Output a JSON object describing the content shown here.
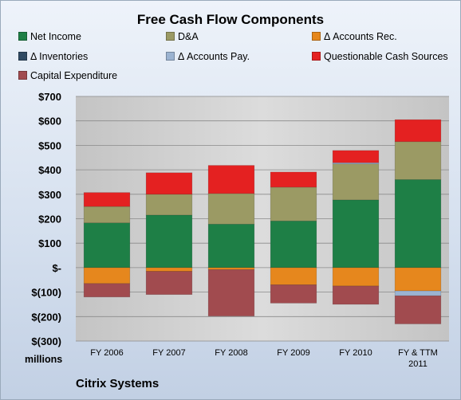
{
  "chart_data": {
    "type": "bar",
    "stacked": true,
    "title": "Free Cash Flow Components",
    "ylabel": "millions",
    "ylim": [
      -300,
      700
    ],
    "yticks": [
      -300,
      -200,
      -100,
      0,
      100,
      200,
      300,
      400,
      500,
      600,
      700
    ],
    "ytick_labels": [
      "$(300)",
      "$(200)",
      "$(100)",
      "$-",
      "$100",
      "$200",
      "$300",
      "$400",
      "$500",
      "$600",
      "$700"
    ],
    "categories": [
      "FY 2006",
      "FY 2007",
      "FY 2008",
      "FY 2009",
      "FY 2010",
      [
        "FY & TTM",
        "2011"
      ]
    ],
    "legend_position": "top",
    "grid": true,
    "series": [
      {
        "name": "Net Income",
        "color": "#1e7f46",
        "values": [
          183,
          215,
          178,
          191,
          277,
          360
        ]
      },
      {
        "name": "D&A",
        "color": "#9b9a64",
        "values": [
          67,
          85,
          125,
          138,
          147,
          155
        ]
      },
      {
        "name": "Δ Accounts Rec.",
        "color": "#e6871d",
        "values": [
          -65,
          -15,
          -8,
          -70,
          -75,
          -95
        ]
      },
      {
        "name": "Δ Inventories",
        "color": "#2f4a63",
        "values": [
          0,
          0,
          0,
          0,
          0,
          0
        ]
      },
      {
        "name": "Δ Accounts Pay.",
        "color": "#9bb3d1",
        "values": [
          0,
          0,
          0,
          0,
          5,
          -20
        ]
      },
      {
        "name": "Questionable Cash Sources",
        "color": "#e42121",
        "values": [
          57,
          88,
          115,
          62,
          50,
          90
        ]
      },
      {
        "name": "Capital Expenditure",
        "color": "#a14b4f",
        "values": [
          -55,
          -95,
          -190,
          -75,
          -75,
          -115
        ]
      }
    ],
    "caption": "Citrix Systems"
  }
}
